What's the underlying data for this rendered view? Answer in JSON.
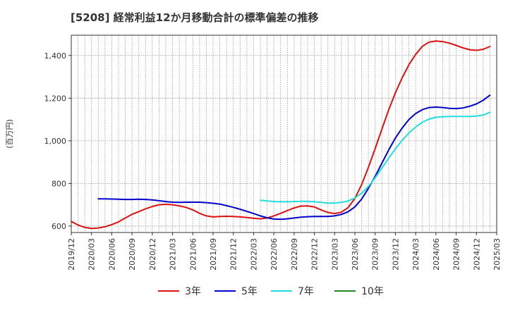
{
  "chart_data": {
    "type": "line",
    "title": "[5208]  経常利益12か月移動合計の標準偏差の推移",
    "ylabel": "(百万円)",
    "xlabel": "",
    "ylim": [
      570,
      1495
    ],
    "yticks": [
      600,
      800,
      1000,
      1200,
      1400
    ],
    "ytick_labels": [
      "600",
      "800",
      "1,000",
      "1,200",
      "1,400"
    ],
    "xlim": [
      "2019-12",
      "2025-03"
    ],
    "xticks": [
      "2019/12",
      "2020/03",
      "2020/06",
      "2020/09",
      "2020/12",
      "2021/03",
      "2021/06",
      "2021/09",
      "2021/12",
      "2022/03",
      "2022/06",
      "2022/09",
      "2022/12",
      "2023/03",
      "2023/06",
      "2023/09",
      "2023/12",
      "2024/03",
      "2024/06",
      "2024/09",
      "2024/12",
      "2025/03"
    ],
    "grid": true,
    "legend_position": "bottom",
    "series": [
      {
        "name": "3年",
        "color": "#dd1111",
        "points": [
          [
            "2019-12",
            622
          ],
          [
            "2020-01",
            605
          ],
          [
            "2020-02",
            594
          ],
          [
            "2020-03",
            589
          ],
          [
            "2020-04",
            591
          ],
          [
            "2020-05",
            597
          ],
          [
            "2020-06",
            607
          ],
          [
            "2020-07",
            620
          ],
          [
            "2020-08",
            638
          ],
          [
            "2020-09",
            655
          ],
          [
            "2020-10",
            668
          ],
          [
            "2020-11",
            681
          ],
          [
            "2020-12",
            692
          ],
          [
            "2021-01",
            700
          ],
          [
            "2021-02",
            702
          ],
          [
            "2021-03",
            700
          ],
          [
            "2021-04",
            695
          ],
          [
            "2021-05",
            688
          ],
          [
            "2021-06",
            676
          ],
          [
            "2021-07",
            660
          ],
          [
            "2021-08",
            648
          ],
          [
            "2021-09",
            643
          ],
          [
            "2021-10",
            645
          ],
          [
            "2021-11",
            646
          ],
          [
            "2021-12",
            645
          ],
          [
            "2022-01",
            643
          ],
          [
            "2022-02",
            640
          ],
          [
            "2022-03",
            637
          ],
          [
            "2022-04",
            634
          ],
          [
            "2022-05",
            638
          ],
          [
            "2022-06",
            648
          ],
          [
            "2022-07",
            660
          ],
          [
            "2022-08",
            673
          ],
          [
            "2022-09",
            685
          ],
          [
            "2022-10",
            694
          ],
          [
            "2022-11",
            695
          ],
          [
            "2022-12",
            690
          ],
          [
            "2023-01",
            676
          ],
          [
            "2023-02",
            664
          ],
          [
            "2023-03",
            659
          ],
          [
            "2023-04",
            665
          ],
          [
            "2023-05",
            687
          ],
          [
            "2023-06",
            730
          ],
          [
            "2023-07",
            795
          ],
          [
            "2023-08",
            875
          ],
          [
            "2023-09",
            963
          ],
          [
            "2023-10",
            1055
          ],
          [
            "2023-11",
            1145
          ],
          [
            "2023-12",
            1225
          ],
          [
            "2024-01",
            1295
          ],
          [
            "2024-02",
            1357
          ],
          [
            "2024-03",
            1405
          ],
          [
            "2024-04",
            1443
          ],
          [
            "2024-05",
            1463
          ],
          [
            "2024-06",
            1468
          ],
          [
            "2024-07",
            1465
          ],
          [
            "2024-08",
            1458
          ],
          [
            "2024-09",
            1447
          ],
          [
            "2024-10",
            1436
          ],
          [
            "2024-11",
            1427
          ],
          [
            "2024-12",
            1424
          ],
          [
            "2025-01",
            1429
          ],
          [
            "2025-02",
            1442
          ]
        ]
      },
      {
        "name": "5年",
        "color": "#0000cc",
        "points": [
          [
            "2020-04",
            728
          ],
          [
            "2020-05",
            728
          ],
          [
            "2020-06",
            727
          ],
          [
            "2020-07",
            726
          ],
          [
            "2020-08",
            725
          ],
          [
            "2020-09",
            725
          ],
          [
            "2020-10",
            726
          ],
          [
            "2020-11",
            725
          ],
          [
            "2020-12",
            723
          ],
          [
            "2021-01",
            719
          ],
          [
            "2021-02",
            715
          ],
          [
            "2021-03",
            712
          ],
          [
            "2021-04",
            711
          ],
          [
            "2021-05",
            712
          ],
          [
            "2021-06",
            712
          ],
          [
            "2021-07",
            712
          ],
          [
            "2021-08",
            710
          ],
          [
            "2021-09",
            707
          ],
          [
            "2021-10",
            703
          ],
          [
            "2021-11",
            696
          ],
          [
            "2021-12",
            688
          ],
          [
            "2022-01",
            679
          ],
          [
            "2022-02",
            669
          ],
          [
            "2022-03",
            659
          ],
          [
            "2022-04",
            648
          ],
          [
            "2022-05",
            639
          ],
          [
            "2022-06",
            633
          ],
          [
            "2022-07",
            632
          ],
          [
            "2022-08",
            634
          ],
          [
            "2022-09",
            638
          ],
          [
            "2022-10",
            642
          ],
          [
            "2022-11",
            644
          ],
          [
            "2022-12",
            645
          ],
          [
            "2023-01",
            645
          ],
          [
            "2023-02",
            645
          ],
          [
            "2023-03",
            648
          ],
          [
            "2023-04",
            655
          ],
          [
            "2023-05",
            667
          ],
          [
            "2023-06",
            690
          ],
          [
            "2023-07",
            727
          ],
          [
            "2023-08",
            777
          ],
          [
            "2023-09",
            833
          ],
          [
            "2023-10",
            895
          ],
          [
            "2023-11",
            957
          ],
          [
            "2023-12",
            1013
          ],
          [
            "2024-01",
            1060
          ],
          [
            "2024-02",
            1100
          ],
          [
            "2024-03",
            1128
          ],
          [
            "2024-04",
            1146
          ],
          [
            "2024-05",
            1156
          ],
          [
            "2024-06",
            1158
          ],
          [
            "2024-07",
            1156
          ],
          [
            "2024-08",
            1152
          ],
          [
            "2024-09",
            1151
          ],
          [
            "2024-10",
            1154
          ],
          [
            "2024-11",
            1162
          ],
          [
            "2024-12",
            1173
          ],
          [
            "2025-01",
            1190
          ],
          [
            "2025-02",
            1214
          ]
        ]
      },
      {
        "name": "7年",
        "color": "#22dddd",
        "points": [
          [
            "2022-04",
            721
          ],
          [
            "2022-05",
            718
          ],
          [
            "2022-06",
            715
          ],
          [
            "2022-07",
            714
          ],
          [
            "2022-08",
            714
          ],
          [
            "2022-09",
            715
          ],
          [
            "2022-10",
            716
          ],
          [
            "2022-11",
            716
          ],
          [
            "2022-12",
            714
          ],
          [
            "2023-01",
            711
          ],
          [
            "2023-02",
            708
          ],
          [
            "2023-03",
            708
          ],
          [
            "2023-04",
            711
          ],
          [
            "2023-05",
            718
          ],
          [
            "2023-06",
            732
          ],
          [
            "2023-07",
            754
          ],
          [
            "2023-08",
            786
          ],
          [
            "2023-09",
            826
          ],
          [
            "2023-10",
            872
          ],
          [
            "2023-11",
            919
          ],
          [
            "2023-12",
            962
          ],
          [
            "2024-01",
            1002
          ],
          [
            "2024-02",
            1037
          ],
          [
            "2024-03",
            1065
          ],
          [
            "2024-04",
            1087
          ],
          [
            "2024-05",
            1102
          ],
          [
            "2024-06",
            1110
          ],
          [
            "2024-07",
            1113
          ],
          [
            "2024-08",
            1114
          ],
          [
            "2024-09",
            1114
          ],
          [
            "2024-10",
            1114
          ],
          [
            "2024-11",
            1114
          ],
          [
            "2024-12",
            1116
          ],
          [
            "2025-01",
            1121
          ],
          [
            "2025-02",
            1133
          ]
        ]
      },
      {
        "name": "10年",
        "color": "#228822",
        "points": []
      }
    ]
  }
}
